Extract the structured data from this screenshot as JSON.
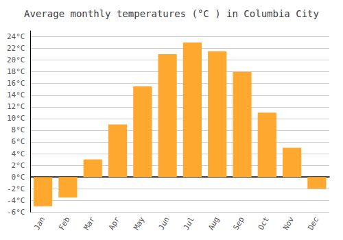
{
  "chart_data": {
    "type": "bar",
    "title": "Average monthly temperatures (°C ) in Columbia City",
    "categories": [
      "Jan",
      "Feb",
      "Mar",
      "Apr",
      "May",
      "Jun",
      "Jul",
      "Aug",
      "Sep",
      "Oct",
      "Nov",
      "Dec"
    ],
    "values": [
      -5,
      -3.5,
      3,
      9,
      15.5,
      21,
      23,
      21.5,
      18,
      11,
      5,
      -2
    ],
    "color": "#FFA830",
    "ylim": [
      -6,
      25
    ],
    "yticks": [
      {
        "value": -6,
        "label": "-6°C"
      },
      {
        "value": -4,
        "label": "-4°C"
      },
      {
        "value": -2,
        "label": "-2°C"
      },
      {
        "value": 0,
        "label": "0°C"
      },
      {
        "value": 2,
        "label": "2°C"
      },
      {
        "value": 4,
        "label": "4°C"
      },
      {
        "value": 6,
        "label": "6°C"
      },
      {
        "value": 8,
        "label": "8°C"
      },
      {
        "value": 10,
        "label": "10°C"
      },
      {
        "value": 12,
        "label": "12°C"
      },
      {
        "value": 14,
        "label": "14°C"
      },
      {
        "value": 16,
        "label": "16°C"
      },
      {
        "value": 18,
        "label": "18°C"
      },
      {
        "value": 20,
        "label": "20°C"
      },
      {
        "value": 22,
        "label": "22°C"
      },
      {
        "value": 24,
        "label": "24°C"
      }
    ],
    "grid": true
  }
}
